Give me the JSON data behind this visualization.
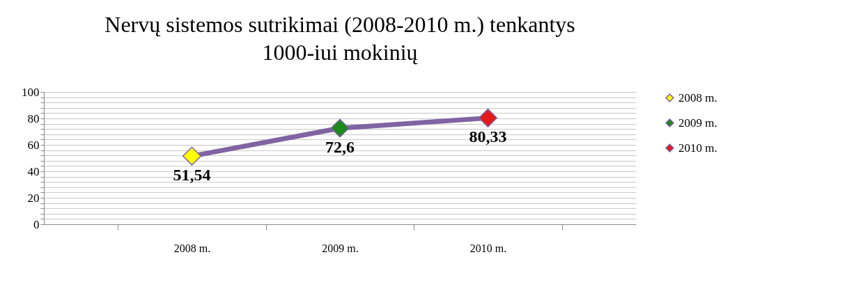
{
  "chart_data": {
    "type": "line",
    "title": "Nervų sistemos sutrikimai (2008-2010 m.) tenkantys 1000-iui mokinių",
    "categories": [
      "2008 m.",
      "2009 m.",
      "2010 m."
    ],
    "series": [
      {
        "color": "#8064a2",
        "values": [
          51.54,
          72.6,
          80.33
        ],
        "value_labels": [
          "51,54",
          "72,6",
          "80,33"
        ]
      },
      {
        "type": "scatter",
        "name": "2008 m.",
        "marker": "diamond",
        "color": "#ffff00",
        "x": [
          "2008 m."
        ],
        "values": [
          51.54
        ]
      },
      {
        "type": "scatter",
        "name": "2009 m.",
        "marker": "diamond",
        "color": "#1a8a1a",
        "x": [
          "2009 m."
        ],
        "values": [
          72.6
        ]
      },
      {
        "type": "scatter",
        "name": "2010 m.",
        "marker": "diamond",
        "color": "#e31a1a",
        "x": [
          "2010 m."
        ],
        "values": [
          80.33
        ]
      }
    ],
    "ylim": [
      0,
      100
    ],
    "yticks": [
      0,
      {
        "value": 4,
        "label": null
      },
      {
        "value": 8,
        "label": null
      },
      {
        "value": 12,
        "label": null
      },
      {
        "value": 16,
        "label": null
      },
      20,
      {
        "value": 24,
        "label": null
      },
      {
        "value": 28,
        "label": null
      },
      {
        "value": 32,
        "label": null
      },
      {
        "value": 36,
        "label": null
      },
      40,
      {
        "value": 44,
        "label": null
      },
      {
        "value": 48,
        "label": null
      },
      {
        "value": 52,
        "label": null
      },
      {
        "value": 56,
        "label": null
      },
      60,
      {
        "value": 64,
        "label": null
      },
      {
        "value": 68,
        "label": null
      },
      {
        "value": 72,
        "label": null
      },
      {
        "value": 76,
        "label": null
      },
      80,
      {
        "value": 84,
        "label": null
      },
      {
        "value": 88,
        "label": null
      },
      {
        "value": 92,
        "label": null
      },
      {
        "value": 96,
        "label": null
      },
      100
    ],
    "grid": "y",
    "legend": "right",
    "line_style": "solid"
  }
}
